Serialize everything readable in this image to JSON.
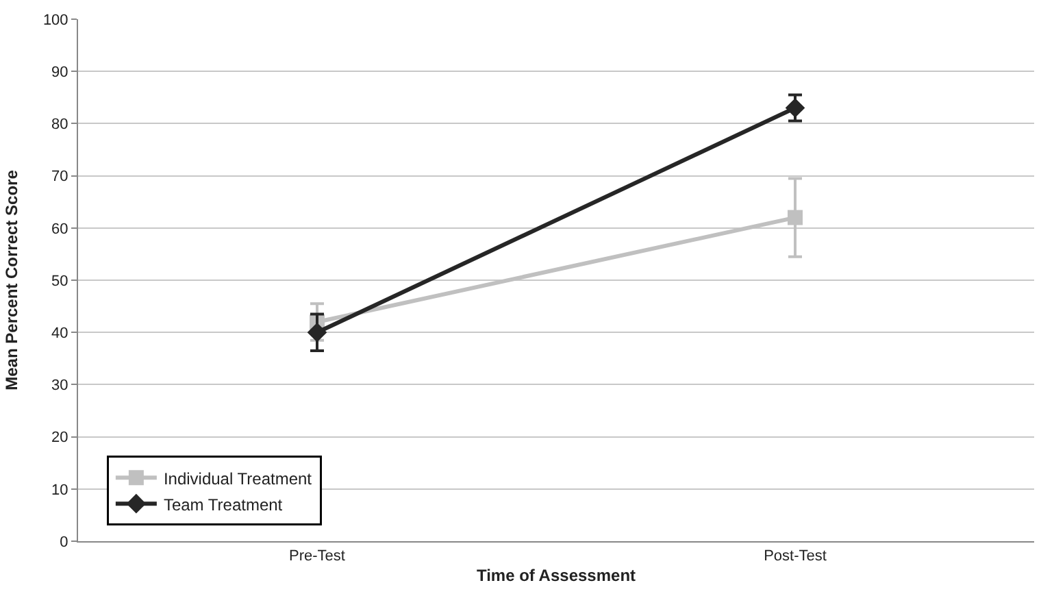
{
  "chart_data": {
    "type": "line",
    "xlabel": "Time of Assessment",
    "ylabel": "Mean Percent Correct Score",
    "categories": [
      "Pre-Test",
      "Post-Test"
    ],
    "series": [
      {
        "name": "Individual Treatment",
        "color": "#c0c0c0",
        "values": [
          42,
          62
        ],
        "errors": [
          3.5,
          7.5
        ],
        "marker": "square"
      },
      {
        "name": "Team Treatment",
        "color": "#262626",
        "values": [
          40,
          83
        ],
        "errors": [
          3.5,
          2.5
        ],
        "marker": "diamond"
      }
    ],
    "ylim": [
      0,
      100
    ],
    "yticks": [
      0,
      10,
      20,
      30,
      40,
      50,
      60,
      70,
      80,
      90,
      100
    ],
    "grid": "y",
    "legend": "bottom left",
    "line_style": "solid"
  }
}
